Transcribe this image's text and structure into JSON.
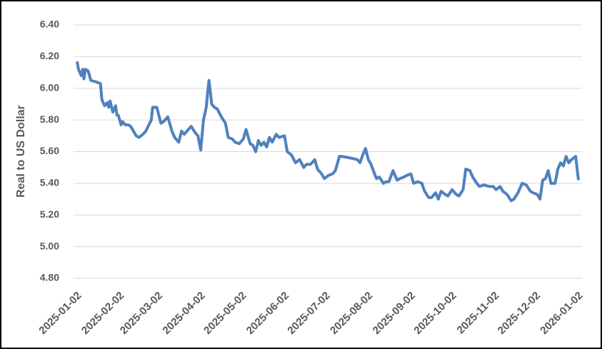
{
  "chart_data": {
    "type": "line",
    "y_label": "Real to US Dollar",
    "x": [
      "2025-01-02",
      "2025-01-03",
      "2025-01-05",
      "2025-01-06",
      "2025-01-07",
      "2025-01-08",
      "2025-01-10",
      "2025-01-12",
      "2025-01-16",
      "2025-01-19",
      "2025-01-20",
      "2025-01-22",
      "2025-01-24",
      "2025-01-25",
      "2025-01-26",
      "2025-01-28",
      "2025-01-30",
      "2025-01-31",
      "2025-02-01",
      "2025-02-03",
      "2025-02-04",
      "2025-02-06",
      "2025-02-08",
      "2025-02-10",
      "2025-02-12",
      "2025-02-14",
      "2025-02-16",
      "2025-02-19",
      "2025-02-21",
      "2025-02-25",
      "2025-02-26",
      "2025-03-01",
      "2025-03-04",
      "2025-03-06",
      "2025-03-09",
      "2025-03-12",
      "2025-03-14",
      "2025-03-17",
      "2025-03-19",
      "2025-03-21",
      "2025-03-23",
      "2025-03-26",
      "2025-03-29",
      "2025-03-31",
      "2025-04-02",
      "2025-04-04",
      "2025-04-06",
      "2025-04-07",
      "2025-04-08",
      "2025-04-10",
      "2025-04-12",
      "2025-04-14",
      "2025-04-17",
      "2025-04-20",
      "2025-04-22",
      "2025-04-25",
      "2025-04-27",
      "2025-04-30",
      "2025-05-03",
      "2025-05-05",
      "2025-05-08",
      "2025-05-10",
      "2025-05-12",
      "2025-05-14",
      "2025-05-16",
      "2025-05-18",
      "2025-05-20",
      "2025-05-22",
      "2025-05-24",
      "2025-05-27",
      "2025-05-29",
      "2025-06-02",
      "2025-06-04",
      "2025-06-07",
      "2025-06-10",
      "2025-06-13",
      "2025-06-16",
      "2025-06-18",
      "2025-06-21",
      "2025-06-24",
      "2025-06-26",
      "2025-06-29",
      "2025-07-01",
      "2025-07-04",
      "2025-07-07",
      "2025-07-09",
      "2025-07-12",
      "2025-07-14",
      "2025-07-20",
      "2025-07-25",
      "2025-07-27",
      "2025-07-29",
      "2025-07-31",
      "2025-08-02",
      "2025-08-04",
      "2025-08-07",
      "2025-08-08",
      "2025-08-10",
      "2025-08-13",
      "2025-08-15",
      "2025-08-17",
      "2025-08-20",
      "2025-08-23",
      "2025-08-25",
      "2025-08-28",
      "2025-08-30",
      "2025-09-02",
      "2025-09-04",
      "2025-09-07",
      "2025-09-10",
      "2025-09-12",
      "2025-09-15",
      "2025-09-17",
      "2025-09-20",
      "2025-09-22",
      "2025-09-24",
      "2025-09-27",
      "2025-09-29",
      "2025-10-02",
      "2025-10-05",
      "2025-10-07",
      "2025-10-10",
      "2025-10-12",
      "2025-10-15",
      "2025-10-17",
      "2025-10-20",
      "2025-10-22",
      "2025-10-25",
      "2025-10-29",
      "2025-11-01",
      "2025-11-03",
      "2025-11-06",
      "2025-11-08",
      "2025-11-11",
      "2025-11-14",
      "2025-11-16",
      "2025-11-19",
      "2025-11-22",
      "2025-11-25",
      "2025-11-28",
      "2025-11-30",
      "2025-12-03",
      "2025-12-05",
      "2025-12-07",
      "2025-12-09",
      "2025-12-11",
      "2025-12-13",
      "2025-12-16",
      "2025-12-18",
      "2025-12-20",
      "2025-12-22",
      "2025-12-24",
      "2025-12-26",
      "2025-12-28",
      "2025-12-31",
      "2026-01-02"
    ],
    "values": [
      6.17,
      6.12,
      6.08,
      6.12,
      6.06,
      6.12,
      6.11,
      6.05,
      6.04,
      6.03,
      5.93,
      5.89,
      5.91,
      5.88,
      5.92,
      5.85,
      5.89,
      5.83,
      5.83,
      5.77,
      5.79,
      5.77,
      5.77,
      5.76,
      5.73,
      5.7,
      5.69,
      5.71,
      5.73,
      5.8,
      5.88,
      5.88,
      5.78,
      5.79,
      5.82,
      5.73,
      5.69,
      5.66,
      5.73,
      5.71,
      5.73,
      5.76,
      5.72,
      5.7,
      5.61,
      5.8,
      5.88,
      5.97,
      6.05,
      5.9,
      5.88,
      5.87,
      5.82,
      5.78,
      5.69,
      5.68,
      5.66,
      5.65,
      5.68,
      5.74,
      5.65,
      5.64,
      5.6,
      5.67,
      5.64,
      5.66,
      5.63,
      5.69,
      5.66,
      5.71,
      5.69,
      5.7,
      5.6,
      5.58,
      5.53,
      5.55,
      5.5,
      5.52,
      5.52,
      5.55,
      5.49,
      5.46,
      5.43,
      5.45,
      5.46,
      5.48,
      5.57,
      5.57,
      5.56,
      5.55,
      5.53,
      5.58,
      5.62,
      5.55,
      5.52,
      5.45,
      5.43,
      5.44,
      5.4,
      5.41,
      5.41,
      5.48,
      5.42,
      5.43,
      5.44,
      5.45,
      5.46,
      5.4,
      5.41,
      5.4,
      5.35,
      5.31,
      5.31,
      5.34,
      5.3,
      5.35,
      5.33,
      5.32,
      5.36,
      5.33,
      5.32,
      5.36,
      5.49,
      5.48,
      5.44,
      5.4,
      5.38,
      5.39,
      5.38,
      5.38,
      5.36,
      5.38,
      5.35,
      5.33,
      5.29,
      5.3,
      5.34,
      5.4,
      5.39,
      5.35,
      5.34,
      5.33,
      5.3,
      5.42,
      5.43,
      5.48,
      5.4,
      5.4,
      5.49,
      5.53,
      5.51,
      5.57,
      5.53,
      5.55,
      5.57,
      5.42
    ],
    "color": "#4f81bd",
    "xlim": [
      "2025-01-02",
      "2026-01-02"
    ],
    "xticks": [
      "2025-01-02",
      "2025-02-02",
      "2025-03-02",
      "2025-04-02",
      "2025-05-02",
      "2025-06-02",
      "2025-07-02",
      "2025-08-02",
      "2025-09-02",
      "2025-10-02",
      "2025-11-02",
      "2025-12-02",
      "2026-01-02"
    ],
    "ylim": [
      4.8,
      6.4
    ],
    "yticks": [
      {
        "value": 4.8,
        "label": "4.80"
      },
      {
        "value": 5.0,
        "label": "5.00"
      },
      {
        "value": 5.2,
        "label": "5.20"
      },
      {
        "value": 5.4,
        "label": "5.40"
      },
      {
        "value": 5.6,
        "label": "5.60"
      },
      {
        "value": 5.8,
        "label": "5.80"
      },
      {
        "value": 6.0,
        "label": "6.00"
      },
      {
        "value": 6.2,
        "label": "6.20"
      },
      {
        "value": 6.4,
        "label": "6.40"
      }
    ],
    "grid": true
  }
}
